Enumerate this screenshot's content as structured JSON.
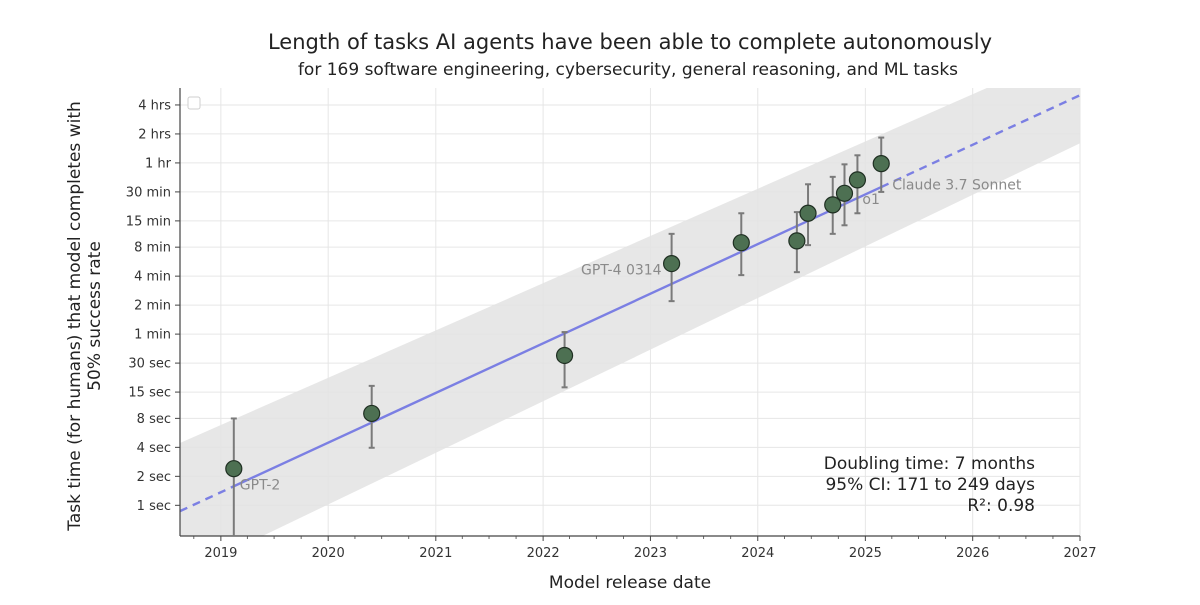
{
  "chart_data": {
    "type": "scatter",
    "title": "Length of tasks AI agents have been able to complete autonomously",
    "subtitle": "for 169 software engineering, cybersecurity, general reasoning, and ML tasks",
    "xlabel": "Model release date",
    "ylabel": [
      "Task time (for humans) that model completes with",
      "50% success rate"
    ],
    "y_scale": "log",
    "y_units": "minutes",
    "xlim": [
      "2018-08-15",
      "2027-01-01"
    ],
    "ylim": [
      0.008,
      360
    ],
    "x_ticks": [
      {
        "date": "2019-01-01",
        "label": "2019"
      },
      {
        "date": "2020-01-01",
        "label": "2020"
      },
      {
        "date": "2021-01-01",
        "label": "2021"
      },
      {
        "date": "2022-01-01",
        "label": "2022"
      },
      {
        "date": "2023-01-01",
        "label": "2023"
      },
      {
        "date": "2024-01-01",
        "label": "2024"
      },
      {
        "date": "2025-01-01",
        "label": "2025"
      },
      {
        "date": "2026-01-01",
        "label": "2026"
      },
      {
        "date": "2027-01-01",
        "label": "2027"
      }
    ],
    "y_ticks": [
      {
        "value": 0.016667,
        "label": "1 sec"
      },
      {
        "value": 0.033333,
        "label": "2 sec"
      },
      {
        "value": 0.066667,
        "label": "4 sec"
      },
      {
        "value": 0.133333,
        "label": "8 sec"
      },
      {
        "value": 0.25,
        "label": "15 sec"
      },
      {
        "value": 0.5,
        "label": "30 sec"
      },
      {
        "value": 1,
        "label": "1 min"
      },
      {
        "value": 2,
        "label": "2 min"
      },
      {
        "value": 4,
        "label": "4 min"
      },
      {
        "value": 8,
        "label": "8 min"
      },
      {
        "value": 15,
        "label": "15 min"
      },
      {
        "value": 30,
        "label": "30 min"
      },
      {
        "value": 60,
        "label": "1 hr"
      },
      {
        "value": 120,
        "label": "2 hrs"
      },
      {
        "value": 240,
        "label": "4 hrs"
      }
    ],
    "grid": true,
    "legend": "top-left",
    "points": [
      {
        "label": "GPT-2",
        "x": "2019-02-14",
        "y": 0.04,
        "err_low": 0.008,
        "err_high": 0.133
      },
      {
        "label": "",
        "x": "2020-05-28",
        "y": 0.15,
        "err_low": 0.066,
        "err_high": 0.29
      },
      {
        "label": "",
        "x": "2022-03-15",
        "y": 0.6,
        "err_low": 0.28,
        "err_high": 1.05
      },
      {
        "label": "GPT-4 0314",
        "x": "2023-03-14",
        "y": 5.4,
        "err_low": 2.2,
        "err_high": 11.0
      },
      {
        "label": "",
        "x": "2023-11-06",
        "y": 8.9,
        "err_low": 4.1,
        "err_high": 18.0
      },
      {
        "label": "",
        "x": "2024-05-13",
        "y": 9.3,
        "err_low": 4.4,
        "err_high": 18.5
      },
      {
        "label": "",
        "x": "2024-06-20",
        "y": 18.0,
        "err_low": 8.4,
        "err_high": 36.0
      },
      {
        "label": "",
        "x": "2024-09-12",
        "y": 22.0,
        "err_low": 11.0,
        "err_high": 43.0
      },
      {
        "label": "",
        "x": "2024-10-22",
        "y": 29.0,
        "err_low": 13.5,
        "err_high": 58.0
      },
      {
        "label": "o1",
        "x": "2024-12-05",
        "y": 40.0,
        "err_low": 18.0,
        "err_high": 72.0
      },
      {
        "label": "Claude 3.7 Sonnet",
        "x": "2025-02-24",
        "y": 59.0,
        "err_low": 30.0,
        "err_high": 110.0
      }
    ],
    "fit": {
      "x": [
        "2018-08-15",
        "2027-01-01"
      ],
      "y": [
        0.0145,
        303.0
      ],
      "fitted_range": [
        "2019-02-14",
        "2025-02-24"
      ],
      "ci_low_y": [
        0.0031,
        96.0
      ],
      "ci_high_y": [
        0.074,
        960.0
      ]
    },
    "annotations": [
      "Doubling time: 7 months",
      "95% CI: 171 to 249 days",
      "R²: 0.98"
    ],
    "colors": {
      "point_fill": "#4d7052",
      "point_stroke": "#1f2f22",
      "error_bar": "#7a7a7a",
      "fit_line": "#7b7fe3",
      "ci_band": "#e3e3e3",
      "grid": "#e6e6e6",
      "axis": "#444444"
    }
  }
}
